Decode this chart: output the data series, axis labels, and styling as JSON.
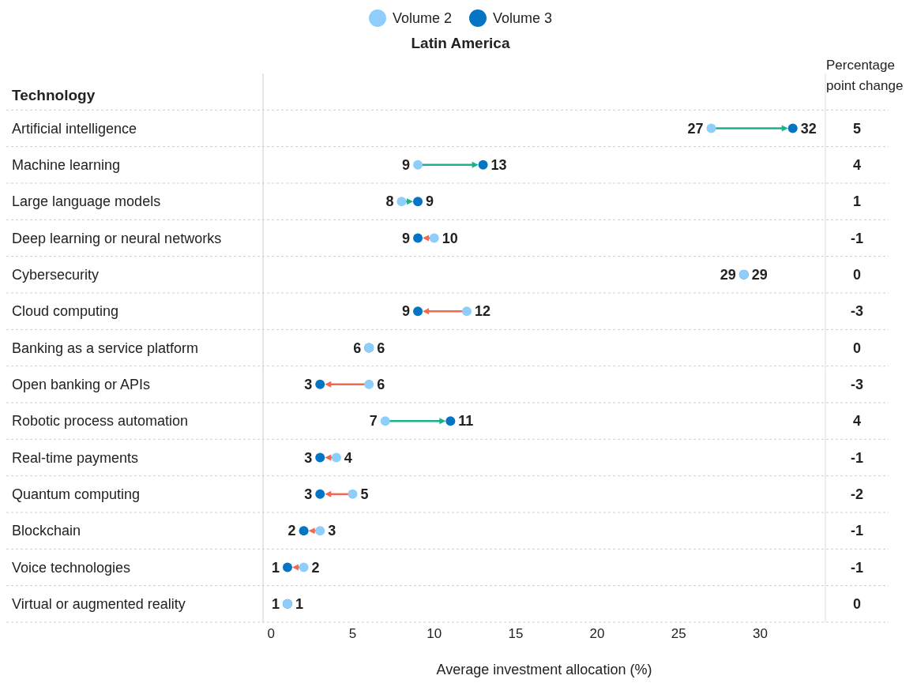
{
  "chart_data": {
    "type": "scatter",
    "title": "Latin America",
    "xlabel": "Average investment allocation (%)",
    "categories": [
      "Artificial intelligence",
      "Machine learning",
      "Large language models",
      "Deep learning or neural networks",
      "Cybersecurity",
      "Cloud computing",
      "Banking as a service platform",
      "Open banking or APIs",
      "Robotic process automation",
      "Real-time payments",
      "Quantum computing",
      "Blockchain",
      "Voice technologies",
      "Virtual or augmented reality"
    ],
    "series": [
      {
        "name": "Volume 2",
        "color": "#8fcdfb",
        "values": [
          27,
          9,
          8,
          10,
          29,
          12,
          6,
          6,
          7,
          4,
          5,
          3,
          2,
          1
        ]
      },
      {
        "name": "Volume 3",
        "color": "#0474c4",
        "values": [
          32,
          13,
          9,
          9,
          29,
          9,
          6,
          3,
          11,
          3,
          3,
          2,
          1,
          1
        ]
      }
    ],
    "orientation": "horizontal",
    "xlim": [
      -0.5,
      34
    ],
    "xticks": [
      0,
      5,
      10,
      15,
      20,
      25,
      30
    ],
    "data_labels": true,
    "marker": "circle",
    "legend": "top",
    "grid": "y",
    "annotations": [
      "Technology",
      "Percentage point change",
      "5",
      "4",
      "1",
      "-1",
      "0",
      "-3",
      "0",
      "-3",
      "4",
      "-1",
      "-2",
      "-1",
      "-1",
      "0"
    ]
  }
}
